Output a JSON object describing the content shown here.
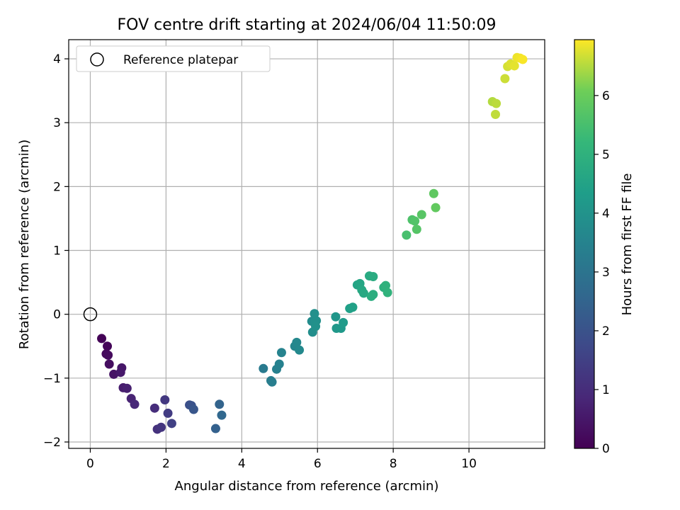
{
  "chart_data": {
    "type": "scatter",
    "title": "FOV centre drift starting at 2024/06/04 11:50:09",
    "xlabel": "Angular distance from reference (arcmin)",
    "ylabel": "Rotation from reference (arcmin)",
    "xlim": [
      -0.57,
      12.0
    ],
    "ylim": [
      -2.1,
      4.3
    ],
    "xticks": [
      0,
      2,
      4,
      6,
      8,
      10
    ],
    "xtick_labels": [
      "0",
      "2",
      "4",
      "6",
      "8",
      "10"
    ],
    "yticks": [
      -2,
      -1,
      0,
      1,
      2,
      3,
      4
    ],
    "ytick_labels": [
      "−2",
      "−1",
      "0",
      "1",
      "2",
      "3",
      "4"
    ],
    "grid": true,
    "legend": {
      "placement": "top-left",
      "entries": [
        {
          "label": "Reference platepar",
          "marker": "open-circle"
        }
      ]
    },
    "reference_point": {
      "x": 0,
      "y": 0,
      "label": "Reference platepar"
    },
    "colorbar": {
      "label": "Hours from first FF file",
      "colormap": "viridis",
      "range": [
        0,
        6.95
      ],
      "ticks": [
        0,
        1,
        2,
        3,
        4,
        5,
        6
      ],
      "tick_labels": [
        "0",
        "1",
        "2",
        "3",
        "4",
        "5",
        "6"
      ]
    },
    "points": [
      {
        "x": 0.3,
        "y": -0.38,
        "c": 0.05
      },
      {
        "x": 0.45,
        "y": -0.5,
        "c": 0.12
      },
      {
        "x": 0.42,
        "y": -0.62,
        "c": 0.18
      },
      {
        "x": 0.47,
        "y": -0.64,
        "c": 0.22
      },
      {
        "x": 0.5,
        "y": -0.78,
        "c": 0.3
      },
      {
        "x": 0.62,
        "y": -0.94,
        "c": 0.4
      },
      {
        "x": 0.83,
        "y": -0.84,
        "c": 0.48
      },
      {
        "x": 0.8,
        "y": -0.91,
        "c": 0.52
      },
      {
        "x": 0.87,
        "y": -1.15,
        "c": 0.6
      },
      {
        "x": 0.97,
        "y": -1.16,
        "c": 0.68
      },
      {
        "x": 1.08,
        "y": -1.32,
        "c": 0.78
      },
      {
        "x": 1.17,
        "y": -1.41,
        "c": 0.88
      },
      {
        "x": 1.7,
        "y": -1.47,
        "c": 1.0
      },
      {
        "x": 1.77,
        "y": -1.8,
        "c": 1.1
      },
      {
        "x": 1.87,
        "y": -1.77,
        "c": 1.2
      },
      {
        "x": 1.97,
        "y": -1.34,
        "c": 1.3
      },
      {
        "x": 2.05,
        "y": -1.55,
        "c": 1.4
      },
      {
        "x": 2.15,
        "y": -1.71,
        "c": 1.5
      },
      {
        "x": 2.62,
        "y": -1.42,
        "c": 1.9
      },
      {
        "x": 2.67,
        "y": -1.43,
        "c": 2.0
      },
      {
        "x": 2.73,
        "y": -1.49,
        "c": 2.1
      },
      {
        "x": 3.31,
        "y": -1.79,
        "c": 2.4
      },
      {
        "x": 3.41,
        "y": -1.41,
        "c": 2.5
      },
      {
        "x": 3.47,
        "y": -1.58,
        "c": 2.6
      },
      {
        "x": 4.57,
        "y": -0.85,
        "c": 3.2
      },
      {
        "x": 4.77,
        "y": -1.04,
        "c": 3.3
      },
      {
        "x": 4.8,
        "y": -1.06,
        "c": 3.35
      },
      {
        "x": 4.92,
        "y": -0.86,
        "c": 3.4
      },
      {
        "x": 4.99,
        "y": -0.78,
        "c": 3.45
      },
      {
        "x": 5.05,
        "y": -0.6,
        "c": 3.5
      },
      {
        "x": 5.4,
        "y": -0.5,
        "c": 3.6
      },
      {
        "x": 5.45,
        "y": -0.44,
        "c": 3.65
      },
      {
        "x": 5.52,
        "y": -0.56,
        "c": 3.7
      },
      {
        "x": 5.85,
        "y": -0.11,
        "c": 3.8
      },
      {
        "x": 5.87,
        "y": -0.28,
        "c": 3.85
      },
      {
        "x": 5.93,
        "y": -0.12,
        "c": 3.88
      },
      {
        "x": 5.92,
        "y": 0.01,
        "c": 3.9
      },
      {
        "x": 5.97,
        "y": -0.1,
        "c": 3.92
      },
      {
        "x": 5.95,
        "y": -0.19,
        "c": 3.95
      },
      {
        "x": 6.48,
        "y": -0.04,
        "c": 4.1
      },
      {
        "x": 6.5,
        "y": -0.22,
        "c": 4.15
      },
      {
        "x": 6.62,
        "y": -0.22,
        "c": 4.2
      },
      {
        "x": 6.68,
        "y": -0.13,
        "c": 4.25
      },
      {
        "x": 6.85,
        "y": 0.09,
        "c": 4.4
      },
      {
        "x": 6.93,
        "y": 0.11,
        "c": 4.45
      },
      {
        "x": 7.05,
        "y": 0.46,
        "c": 4.55
      },
      {
        "x": 7.12,
        "y": 0.48,
        "c": 4.6
      },
      {
        "x": 7.17,
        "y": 0.38,
        "c": 4.65
      },
      {
        "x": 7.22,
        "y": 0.33,
        "c": 4.7
      },
      {
        "x": 7.37,
        "y": 0.6,
        "c": 4.75
      },
      {
        "x": 7.47,
        "y": 0.59,
        "c": 4.8
      },
      {
        "x": 7.42,
        "y": 0.28,
        "c": 4.85
      },
      {
        "x": 7.47,
        "y": 0.31,
        "c": 4.88
      },
      {
        "x": 7.75,
        "y": 0.42,
        "c": 4.95
      },
      {
        "x": 7.8,
        "y": 0.45,
        "c": 5.0
      },
      {
        "x": 7.85,
        "y": 0.34,
        "c": 5.05
      },
      {
        "x": 8.35,
        "y": 1.24,
        "c": 5.5
      },
      {
        "x": 8.5,
        "y": 1.48,
        "c": 5.6
      },
      {
        "x": 8.57,
        "y": 1.46,
        "c": 5.65
      },
      {
        "x": 8.62,
        "y": 1.33,
        "c": 5.7
      },
      {
        "x": 8.75,
        "y": 1.56,
        "c": 5.75
      },
      {
        "x": 9.07,
        "y": 1.89,
        "c": 5.85
      },
      {
        "x": 9.12,
        "y": 1.67,
        "c": 5.9
      },
      {
        "x": 10.62,
        "y": 3.33,
        "c": 6.5
      },
      {
        "x": 10.72,
        "y": 3.3,
        "c": 6.55
      },
      {
        "x": 10.7,
        "y": 3.13,
        "c": 6.58
      },
      {
        "x": 10.95,
        "y": 3.69,
        "c": 6.65
      },
      {
        "x": 11.02,
        "y": 3.88,
        "c": 6.7
      },
      {
        "x": 11.1,
        "y": 3.92,
        "c": 6.75
      },
      {
        "x": 11.2,
        "y": 3.89,
        "c": 6.8
      },
      {
        "x": 11.27,
        "y": 4.02,
        "c": 6.85
      },
      {
        "x": 11.35,
        "y": 4.01,
        "c": 6.88
      },
      {
        "x": 11.42,
        "y": 3.99,
        "c": 6.92
      }
    ]
  }
}
